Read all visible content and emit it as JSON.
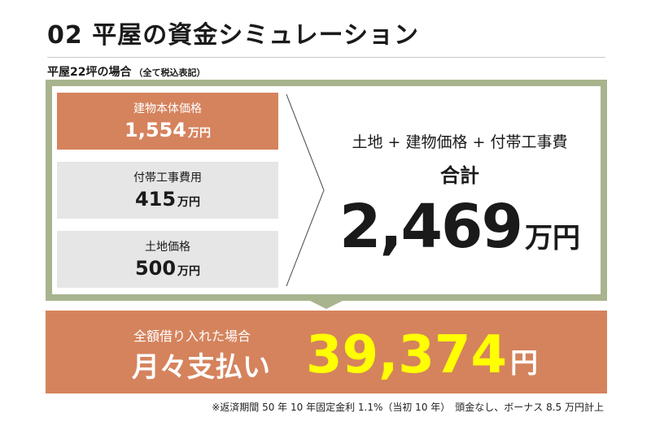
{
  "heading": "02 平屋の資金シミュレーション",
  "subheading": {
    "main": "平屋22坪の場合",
    "small": "（全て税込表記）"
  },
  "breakdown": [
    {
      "label": "建物本体価格",
      "value": "1,554",
      "unit": "万円",
      "style": "orange"
    },
    {
      "label": "付帯工事費用",
      "value": "415",
      "unit": "万円",
      "style": "gray"
    },
    {
      "label": "土地価格",
      "value": "500",
      "unit": "万円",
      "style": "gray"
    }
  ],
  "summary": {
    "formula": "土地 + 建物価格 + 付帯工事費",
    "label": "合計",
    "total": "2,469",
    "unit": "万円"
  },
  "monthly": {
    "pre_label": "全額借り入れた場合",
    "main_label": "月々支払い",
    "amount": "39,374",
    "unit": "円"
  },
  "footnote": "※返済期間 50 年 10 年固定金利 1.1%（当初 10 年）　頭金なし、ボーナス 8.5 万円計上",
  "colors": {
    "accent": "#d5835d",
    "frame": "#a8b48e",
    "highlight": "#ffff00",
    "box_gray": "#e6e6e6"
  }
}
